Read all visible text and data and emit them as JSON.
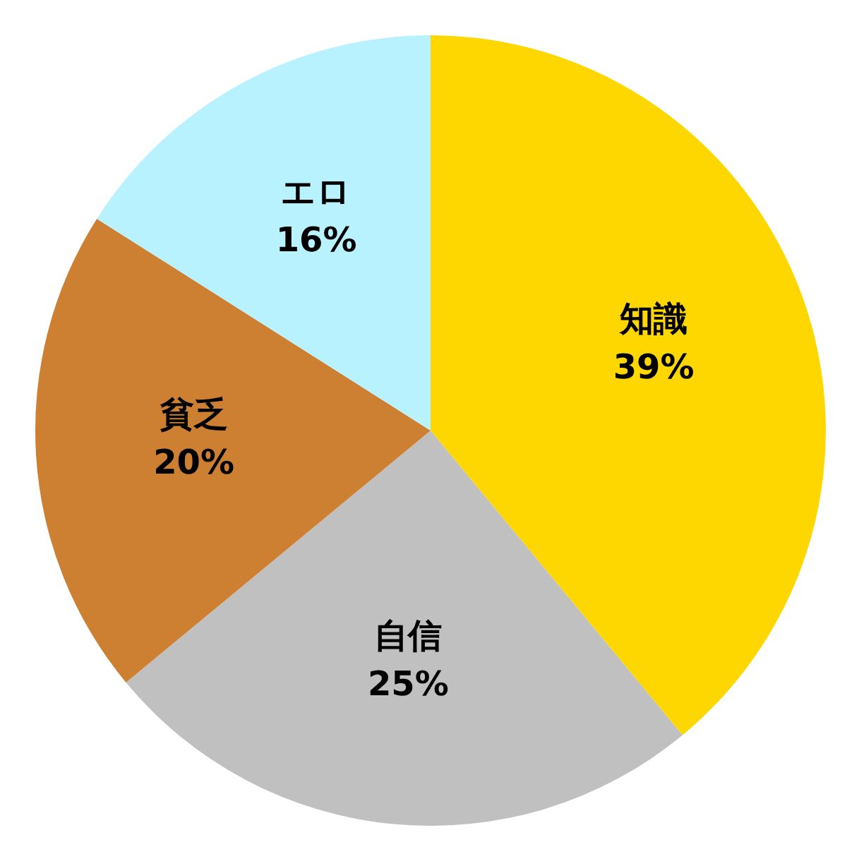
{
  "chart_data": {
    "type": "pie",
    "categories": [
      "知識",
      "自信",
      "貧乏",
      "エロ"
    ],
    "values": [
      39,
      25,
      20,
      16
    ],
    "value_labels": [
      "39%",
      "25%",
      "20%",
      "16%"
    ],
    "colors": [
      "#ffd700",
      "#c0c0c0",
      "#cd7f32",
      "#b9f2ff"
    ]
  }
}
